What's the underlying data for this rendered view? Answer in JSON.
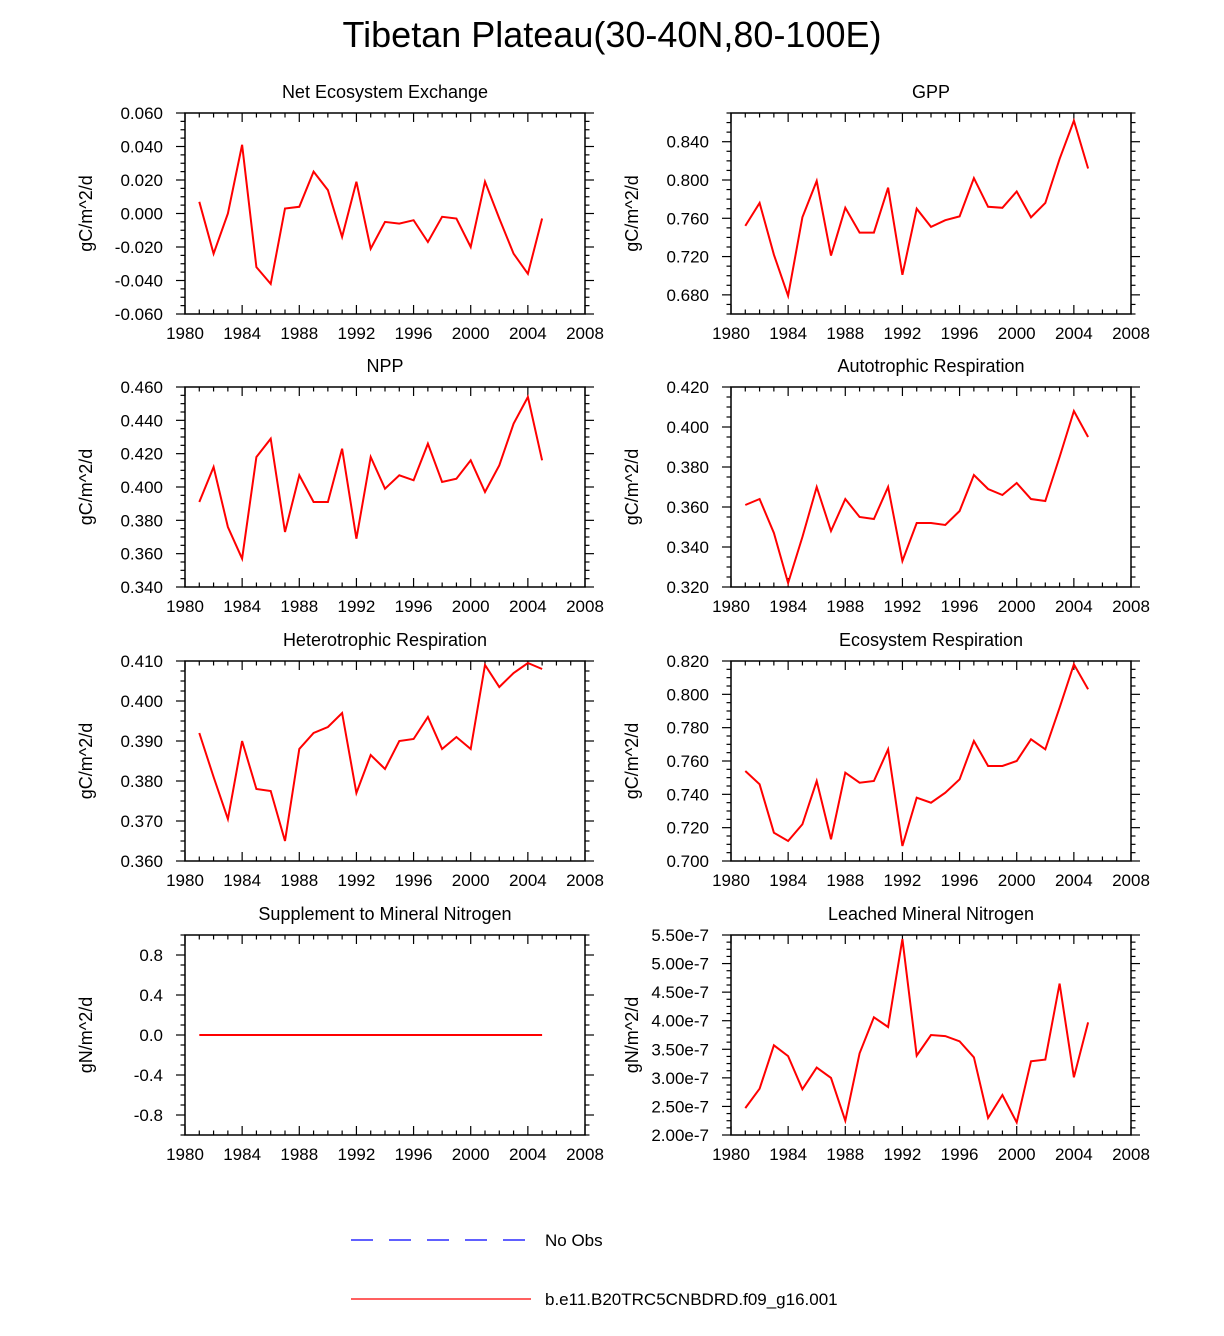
{
  "title": "Tibetan Plateau(30-40N,80-100E)",
  "colors": {
    "model": "#ff0000",
    "obs": "#0000ff"
  },
  "legend": [
    {
      "label": "No Obs",
      "style": "dashed",
      "color": "#0000ff"
    },
    {
      "label": "b.e11.B20TRC5CNBDRD.f09_g16.001",
      "style": "solid",
      "color": "#ff0000"
    }
  ],
  "chart_data": [
    {
      "type": "line",
      "title": "Net Ecosystem Exchange",
      "ylabel": "gC/m^2/d",
      "xlim": [
        1980,
        2008
      ],
      "ylim": [
        -0.06,
        0.06
      ],
      "xticks": [
        "1980",
        "1984",
        "1988",
        "1992",
        "1996",
        "2000",
        "2004",
        "2008"
      ],
      "yticks": [
        "-0.060",
        "-0.040",
        "-0.020",
        "0.000",
        "0.020",
        "0.040",
        "0.060"
      ],
      "x": [
        1981,
        1982,
        1983,
        1984,
        1985,
        1986,
        1987,
        1988,
        1989,
        1990,
        1991,
        1992,
        1993,
        1994,
        1995,
        1996,
        1997,
        1998,
        1999,
        2000,
        2001,
        2002,
        2003,
        2004,
        2005
      ],
      "values": [
        0.007,
        -0.024,
        0.0,
        0.041,
        -0.032,
        -0.042,
        0.003,
        0.004,
        0.025,
        0.014,
        -0.014,
        0.019,
        -0.021,
        -0.005,
        -0.006,
        -0.004,
        -0.017,
        -0.002,
        -0.003,
        -0.02,
        0.019,
        -0.003,
        -0.024,
        -0.036,
        -0.003
      ]
    },
    {
      "type": "line",
      "title": "GPP",
      "ylabel": "gC/m^2/d",
      "xlim": [
        1980,
        2008
      ],
      "ylim": [
        0.66,
        0.87
      ],
      "xticks": [
        "1980",
        "1984",
        "1988",
        "1992",
        "1996",
        "2000",
        "2004",
        "2008"
      ],
      "yticks": [
        "0.680",
        "0.720",
        "0.760",
        "0.800",
        "0.840"
      ],
      "x": [
        1981,
        1982,
        1983,
        1984,
        1985,
        1986,
        1987,
        1988,
        1989,
        1990,
        1991,
        1992,
        1993,
        1994,
        1995,
        1996,
        1997,
        1998,
        1999,
        2000,
        2001,
        2002,
        2003,
        2004,
        2005
      ],
      "values": [
        0.752,
        0.776,
        0.722,
        0.679,
        0.761,
        0.799,
        0.721,
        0.771,
        0.745,
        0.745,
        0.792,
        0.701,
        0.77,
        0.751,
        0.758,
        0.762,
        0.802,
        0.772,
        0.771,
        0.788,
        0.761,
        0.776,
        0.822,
        0.862,
        0.812
      ]
    },
    {
      "type": "line",
      "title": "NPP",
      "ylabel": "gC/m^2/d",
      "xlim": [
        1980,
        2008
      ],
      "ylim": [
        0.34,
        0.46
      ],
      "xticks": [
        "1980",
        "1984",
        "1988",
        "1992",
        "1996",
        "2000",
        "2004",
        "2008"
      ],
      "yticks": [
        "0.340",
        "0.360",
        "0.380",
        "0.400",
        "0.420",
        "0.440",
        "0.460"
      ],
      "x": [
        1981,
        1982,
        1983,
        1984,
        1985,
        1986,
        1987,
        1988,
        1989,
        1990,
        1991,
        1992,
        1993,
        1994,
        1995,
        1996,
        1997,
        1998,
        1999,
        2000,
        2001,
        2002,
        2003,
        2004,
        2005
      ],
      "values": [
        0.391,
        0.412,
        0.376,
        0.357,
        0.418,
        0.429,
        0.373,
        0.407,
        0.391,
        0.391,
        0.423,
        0.369,
        0.418,
        0.399,
        0.407,
        0.404,
        0.426,
        0.403,
        0.405,
        0.416,
        0.397,
        0.413,
        0.438,
        0.454,
        0.416
      ]
    },
    {
      "type": "line",
      "title": "Autotrophic Respiration",
      "ylabel": "gC/m^2/d",
      "xlim": [
        1980,
        2008
      ],
      "ylim": [
        0.32,
        0.42
      ],
      "xticks": [
        "1980",
        "1984",
        "1988",
        "1992",
        "1996",
        "2000",
        "2004",
        "2008"
      ],
      "yticks": [
        "0.320",
        "0.340",
        "0.360",
        "0.380",
        "0.400",
        "0.420"
      ],
      "x": [
        1981,
        1982,
        1983,
        1984,
        1985,
        1986,
        1987,
        1988,
        1989,
        1990,
        1991,
        1992,
        1993,
        1994,
        1995,
        1996,
        1997,
        1998,
        1999,
        2000,
        2001,
        2002,
        2003,
        2004,
        2005
      ],
      "values": [
        0.361,
        0.364,
        0.347,
        0.322,
        0.345,
        0.37,
        0.348,
        0.364,
        0.355,
        0.354,
        0.37,
        0.333,
        0.352,
        0.352,
        0.351,
        0.358,
        0.376,
        0.369,
        0.366,
        0.372,
        0.364,
        0.363,
        0.385,
        0.408,
        0.395
      ]
    },
    {
      "type": "line",
      "title": "Heterotrophic Respiration",
      "ylabel": "gC/m^2/d",
      "xlim": [
        1980,
        2008
      ],
      "ylim": [
        0.36,
        0.41
      ],
      "xticks": [
        "1980",
        "1984",
        "1988",
        "1992",
        "1996",
        "2000",
        "2004",
        "2008"
      ],
      "yticks": [
        "0.360",
        "0.370",
        "0.380",
        "0.390",
        "0.400",
        "0.410"
      ],
      "x": [
        1981,
        1982,
        1983,
        1984,
        1985,
        1986,
        1987,
        1988,
        1989,
        1990,
        1991,
        1992,
        1993,
        1994,
        1995,
        1996,
        1997,
        1998,
        1999,
        2000,
        2001,
        2002,
        2003,
        2004,
        2005
      ],
      "values": [
        0.392,
        0.381,
        0.3705,
        0.39,
        0.378,
        0.3775,
        0.365,
        0.388,
        0.392,
        0.3935,
        0.397,
        0.377,
        0.3865,
        0.383,
        0.39,
        0.3905,
        0.396,
        0.388,
        0.391,
        0.388,
        0.409,
        0.4035,
        0.407,
        0.4095,
        0.408
      ]
    },
    {
      "type": "line",
      "title": "Ecosystem Respiration",
      "ylabel": "gC/m^2/d",
      "xlim": [
        1980,
        2008
      ],
      "ylim": [
        0.7,
        0.82
      ],
      "xticks": [
        "1980",
        "1984",
        "1988",
        "1992",
        "1996",
        "2000",
        "2004",
        "2008"
      ],
      "yticks": [
        "0.700",
        "0.720",
        "0.740",
        "0.760",
        "0.780",
        "0.800",
        "0.820"
      ],
      "x": [
        1981,
        1982,
        1983,
        1984,
        1985,
        1986,
        1987,
        1988,
        1989,
        1990,
        1991,
        1992,
        1993,
        1994,
        1995,
        1996,
        1997,
        1998,
        1999,
        2000,
        2001,
        2002,
        2003,
        2004,
        2005
      ],
      "values": [
        0.754,
        0.746,
        0.717,
        0.712,
        0.722,
        0.748,
        0.713,
        0.753,
        0.747,
        0.748,
        0.767,
        0.709,
        0.738,
        0.735,
        0.741,
        0.749,
        0.772,
        0.757,
        0.757,
        0.76,
        0.773,
        0.767,
        0.792,
        0.818,
        0.803
      ]
    },
    {
      "type": "line",
      "title": "Supplement to Mineral Nitrogen",
      "ylabel": "gN/m^2/d",
      "xlim": [
        1980,
        2008
      ],
      "ylim": [
        -1.0,
        1.0
      ],
      "xticks": [
        "1980",
        "1984",
        "1988",
        "1992",
        "1996",
        "2000",
        "2004",
        "2008"
      ],
      "yticks": [
        "-0.8",
        "-0.4",
        "0.0",
        "0.4",
        "0.8"
      ],
      "x": [
        1981,
        1982,
        1983,
        1984,
        1985,
        1986,
        1987,
        1988,
        1989,
        1990,
        1991,
        1992,
        1993,
        1994,
        1995,
        1996,
        1997,
        1998,
        1999,
        2000,
        2001,
        2002,
        2003,
        2004,
        2005
      ],
      "values": [
        0,
        0,
        0,
        0,
        0,
        0,
        0,
        0,
        0,
        0,
        0,
        0,
        0,
        0,
        0,
        0,
        0,
        0,
        0,
        0,
        0,
        0,
        0,
        0,
        0
      ]
    },
    {
      "type": "line",
      "title": "Leached Mineral Nitrogen",
      "ylabel": "gN/m^2/d",
      "xlim": [
        1980,
        2008
      ],
      "ylim": [
        2e-07,
        5.5e-07
      ],
      "xticks": [
        "1980",
        "1984",
        "1988",
        "1992",
        "1996",
        "2000",
        "2004",
        "2008"
      ],
      "yticks": [
        "2.00e-7",
        "2.50e-7",
        "3.00e-7",
        "3.50e-7",
        "4.00e-7",
        "4.50e-7",
        "5.00e-7",
        "5.50e-7"
      ],
      "x": [
        1981,
        1982,
        1983,
        1984,
        1985,
        1986,
        1987,
        1988,
        1989,
        1990,
        1991,
        1992,
        1993,
        1994,
        1995,
        1996,
        1997,
        1998,
        1999,
        2000,
        2001,
        2002,
        2003,
        2004,
        2005
      ],
      "values": [
        2.47e-07,
        2.81e-07,
        3.57e-07,
        3.38e-07,
        2.8e-07,
        3.18e-07,
        3e-07,
        2.25e-07,
        3.43e-07,
        4.06e-07,
        3.89e-07,
        5.43e-07,
        3.39e-07,
        3.75e-07,
        3.73e-07,
        3.64e-07,
        3.36e-07,
        2.3e-07,
        2.7e-07,
        2.22e-07,
        3.29e-07,
        3.32e-07,
        4.65e-07,
        3.01e-07,
        3.97e-07
      ]
    }
  ]
}
